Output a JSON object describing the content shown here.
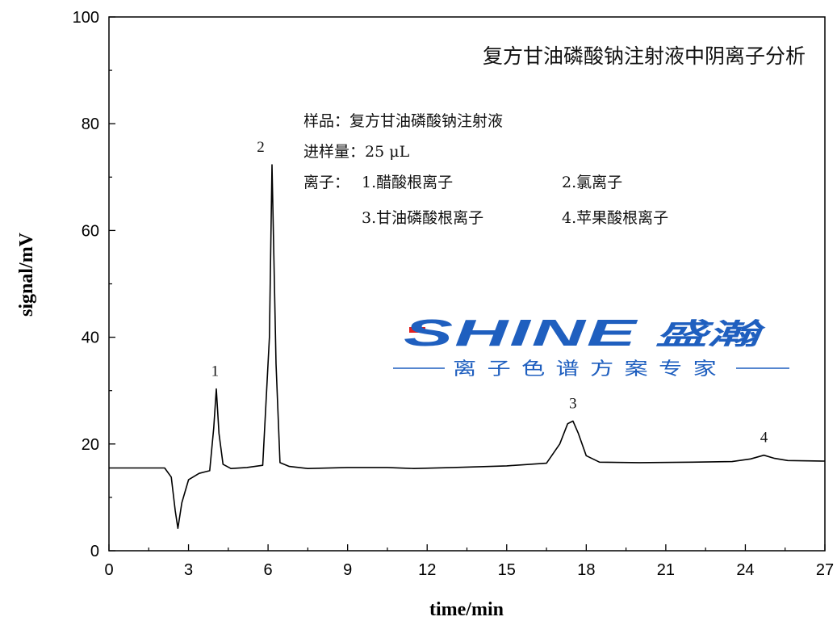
{
  "chart_data": {
    "type": "line",
    "title": "复方甘油磷酸钠注射液中阴离子分析",
    "xlabel": "time/min",
    "ylabel": "signal/mV",
    "xlim": [
      0,
      27
    ],
    "ylim": [
      0,
      100
    ],
    "x_ticks": [
      "0",
      "3",
      "6",
      "9",
      "12",
      "15",
      "18",
      "21",
      "24",
      "27"
    ],
    "y_ticks": [
      "0",
      "20",
      "40",
      "60",
      "80",
      "100"
    ],
    "grid": false,
    "series": [
      {
        "x": [
          0,
          2.1,
          2.35,
          2.5,
          2.6,
          2.75,
          3.0,
          3.4,
          3.8,
          3.95,
          4.05,
          4.15,
          4.3,
          4.6,
          5.2,
          5.8,
          6.05,
          6.15,
          6.3,
          6.45,
          6.8,
          7.5,
          9.0,
          10.5,
          11.5,
          13.0,
          15.0,
          16.5,
          17.0,
          17.3,
          17.5,
          17.7,
          18.0,
          18.5,
          20.0,
          22.0,
          23.5,
          24.2,
          24.7,
          25.1,
          25.6,
          27.0
        ],
        "values": [
          15.5,
          15.5,
          13.8,
          7.5,
          4.2,
          9.0,
          13.3,
          14.5,
          15.0,
          23.0,
          30.3,
          22.0,
          16.2,
          15.4,
          15.6,
          16.0,
          40.0,
          72.3,
          35.0,
          16.5,
          15.8,
          15.4,
          15.6,
          15.6,
          15.4,
          15.6,
          15.9,
          16.4,
          20.0,
          23.8,
          24.3,
          22.0,
          17.8,
          16.6,
          16.5,
          16.6,
          16.7,
          17.2,
          17.9,
          17.3,
          16.9,
          16.8
        ]
      }
    ],
    "peak_labels": [
      {
        "label": "1",
        "x": 4.0,
        "y": 30.3
      },
      {
        "label": "2",
        "x": 6.15,
        "y": 72.3
      },
      {
        "label": "3",
        "x": 17.5,
        "y": 24.3
      },
      {
        "label": "4",
        "x": 24.7,
        "y": 17.9
      }
    ],
    "annotations": {
      "sample": "样品：复方甘油磷酸钠注射液",
      "injection": "进样量：25 μL",
      "ions_label": "离子：",
      "ion1": "1.醋酸根离子",
      "ion2": "2.氯离子",
      "ion3": "3.甘油磷酸根离子",
      "ion4": "4.苹果酸根离子"
    }
  },
  "watermark": {
    "brand": "SHINE",
    "brand_cn": "盛瀚",
    "tagline": "离子色谱方案专家",
    "color_primary": "#1f5fbf",
    "color_accent": "#e02020"
  }
}
